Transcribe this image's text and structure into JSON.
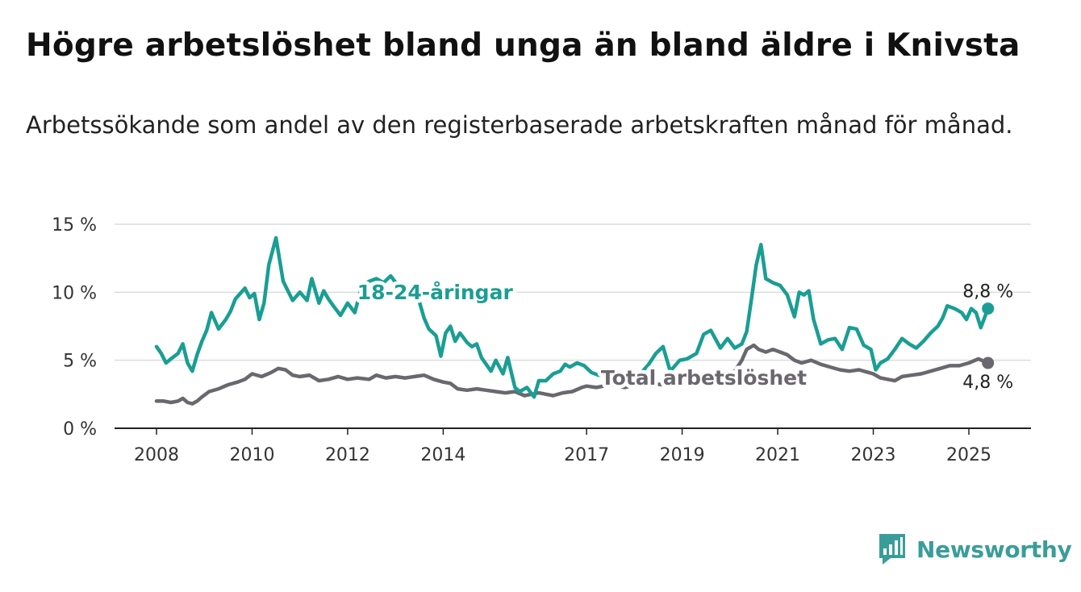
{
  "title": "Högre arbetslöshet bland unga än bland äldre i Knivsta",
  "subtitle": "Arbetssökande som andel av den registerbaserade arbetskraften månad för månad.",
  "brand": {
    "name": "Newsworthy",
    "icon": "newsworthy-logo-icon",
    "color": "#3a9d9a"
  },
  "chart_data": {
    "type": "line",
    "title": "Högre arbetslöshet bland unga än bland äldre i Knivsta",
    "subtitle": "Arbetssökande som andel av den registerbaserade arbetskraften månad för månad.",
    "xlabel": "",
    "ylabel": "",
    "xlim": [
      2008,
      2026.3
    ],
    "ylim": [
      0,
      15
    ],
    "x_ticks": [
      2008,
      2010,
      2012,
      2014,
      2017,
      2019,
      2021,
      2023,
      2025
    ],
    "x_tick_labels": [
      "2008",
      "2010",
      "2012",
      "2014",
      "2017",
      "2019",
      "2021",
      "2023",
      "2025"
    ],
    "y_ticks": [
      0,
      5,
      10,
      15
    ],
    "y_tick_labels": [
      "0 %",
      "5 %",
      "10 %",
      "15 %"
    ],
    "grid": "horizontal",
    "legend": "inline labels",
    "series": [
      {
        "name": "18-24-åringar",
        "color": "#1a9e93",
        "end_label": "8,8 %",
        "x": [
          2008.0,
          2008.1,
          2008.2,
          2008.3,
          2008.45,
          2008.55,
          2008.65,
          2008.75,
          2008.85,
          2008.95,
          2009.05,
          2009.15,
          2009.3,
          2009.45,
          2009.55,
          2009.65,
          2009.75,
          2009.85,
          2009.95,
          2010.05,
          2010.15,
          2010.25,
          2010.35,
          2010.5,
          2010.65,
          2010.75,
          2010.85,
          2011.0,
          2011.15,
          2011.25,
          2011.4,
          2011.5,
          2011.6,
          2011.7,
          2011.85,
          2012.0,
          2012.15,
          2012.3,
          2012.45,
          2012.6,
          2012.75,
          2012.9,
          2013.05,
          2013.2,
          2013.35,
          2013.5,
          2013.6,
          2013.7,
          2013.85,
          2013.95,
          2014.05,
          2014.15,
          2014.25,
          2014.35,
          2014.5,
          2014.6,
          2014.7,
          2014.8,
          2015.0,
          2015.1,
          2015.25,
          2015.35,
          2015.5,
          2015.6,
          2015.75,
          2015.9,
          2016.0,
          2016.15,
          2016.3,
          2016.45,
          2016.55,
          2016.65,
          2016.8,
          2016.95,
          2017.1,
          2017.25,
          2017.5,
          2017.7,
          2017.9,
          2018.1,
          2018.3,
          2018.45,
          2018.6,
          2018.75,
          2018.95,
          2019.1,
          2019.3,
          2019.45,
          2019.6,
          2019.8,
          2019.95,
          2020.1,
          2020.25,
          2020.35,
          2020.45,
          2020.55,
          2020.65,
          2020.75,
          2020.9,
          2021.05,
          2021.2,
          2021.35,
          2021.45,
          2021.55,
          2021.65,
          2021.75,
          2021.9,
          2022.05,
          2022.2,
          2022.35,
          2022.5,
          2022.65,
          2022.8,
          2022.95,
          2023.05,
          2023.15,
          2023.3,
          2023.45,
          2023.6,
          2023.75,
          2023.9,
          2024.05,
          2024.2,
          2024.35,
          2024.45,
          2024.55,
          2024.7,
          2024.85,
          2024.95,
          2025.05,
          2025.15,
          2025.25,
          2025.4
        ],
        "y": [
          6.0,
          5.5,
          4.8,
          5.1,
          5.5,
          6.2,
          4.8,
          4.2,
          5.4,
          6.4,
          7.2,
          8.5,
          7.3,
          8.0,
          8.6,
          9.5,
          9.9,
          10.3,
          9.6,
          9.9,
          8.0,
          9.2,
          12.0,
          14.0,
          10.8,
          10.1,
          9.4,
          10.0,
          9.4,
          11.0,
          9.2,
          10.1,
          9.5,
          9.0,
          8.3,
          9.2,
          8.5,
          10.5,
          10.8,
          11.0,
          10.7,
          11.2,
          10.5,
          10.3,
          10.0,
          9.3,
          8.1,
          7.3,
          6.8,
          5.3,
          7.0,
          7.5,
          6.4,
          7.0,
          6.3,
          6.0,
          6.2,
          5.2,
          4.2,
          5.0,
          4.0,
          5.2,
          3.0,
          2.7,
          3.0,
          2.3,
          3.5,
          3.5,
          4.0,
          4.2,
          4.7,
          4.5,
          4.8,
          4.6,
          4.1,
          3.9,
          4.0,
          3.8,
          4.2,
          3.9,
          4.7,
          5.5,
          6.0,
          4.2,
          5.0,
          5.1,
          5.5,
          6.9,
          7.2,
          5.9,
          6.6,
          5.9,
          6.2,
          7.1,
          9.5,
          12.0,
          13.5,
          11.0,
          10.7,
          10.5,
          9.8,
          8.2,
          10.0,
          9.8,
          10.1,
          8.0,
          6.2,
          6.5,
          6.6,
          5.8,
          7.4,
          7.3,
          6.1,
          5.8,
          4.3,
          4.8,
          5.1,
          5.8,
          6.6,
          6.2,
          5.9,
          6.4,
          7.0,
          7.5,
          8.1,
          9.0,
          8.8,
          8.5,
          8.0,
          8.8,
          8.5,
          7.4,
          8.8
        ]
      },
      {
        "name": "Total arbetslöshet",
        "color": "#6b676e",
        "end_label": "4,8 %",
        "x": [
          2008.0,
          2008.15,
          2008.3,
          2008.45,
          2008.55,
          2008.65,
          2008.75,
          2008.85,
          2008.95,
          2009.1,
          2009.3,
          2009.5,
          2009.7,
          2009.85,
          2010.0,
          2010.2,
          2010.4,
          2010.55,
          2010.7,
          2010.85,
          2011.0,
          2011.2,
          2011.4,
          2011.6,
          2011.8,
          2012.0,
          2012.2,
          2012.45,
          2012.6,
          2012.8,
          2013.0,
          2013.2,
          2013.4,
          2013.6,
          2013.8,
          2014.0,
          2014.15,
          2014.3,
          2014.5,
          2014.7,
          2014.9,
          2015.1,
          2015.3,
          2015.5,
          2015.7,
          2015.85,
          2016.0,
          2016.15,
          2016.3,
          2016.5,
          2016.7,
          2016.9,
          2017.0,
          2017.2,
          2017.5,
          2017.8,
          2018.0,
          2018.3,
          2018.6,
          2018.9,
          2019.2,
          2019.5,
          2019.8,
          2020.1,
          2020.25,
          2020.35,
          2020.5,
          2020.6,
          2020.75,
          2020.9,
          2021.05,
          2021.2,
          2021.35,
          2021.5,
          2021.7,
          2021.9,
          2022.1,
          2022.3,
          2022.5,
          2022.7,
          2022.9,
          2023.0,
          2023.15,
          2023.3,
          2023.45,
          2023.6,
          2023.8,
          2024.0,
          2024.2,
          2024.4,
          2024.6,
          2024.8,
          2025.0,
          2025.2,
          2025.4
        ],
        "y": [
          2.0,
          2.0,
          1.9,
          2.0,
          2.2,
          1.9,
          1.8,
          2.0,
          2.3,
          2.7,
          2.9,
          3.2,
          3.4,
          3.6,
          4.0,
          3.8,
          4.1,
          4.4,
          4.3,
          3.9,
          3.8,
          3.9,
          3.5,
          3.6,
          3.8,
          3.6,
          3.7,
          3.6,
          3.9,
          3.7,
          3.8,
          3.7,
          3.8,
          3.9,
          3.6,
          3.4,
          3.3,
          2.9,
          2.8,
          2.9,
          2.8,
          2.7,
          2.6,
          2.7,
          2.4,
          2.5,
          2.6,
          2.5,
          2.4,
          2.6,
          2.7,
          3.0,
          3.1,
          3.0,
          3.2,
          3.0,
          3.2,
          3.3,
          3.2,
          3.3,
          3.4,
          3.5,
          3.6,
          4.2,
          5.0,
          5.8,
          6.1,
          5.8,
          5.6,
          5.8,
          5.6,
          5.4,
          5.0,
          4.8,
          5.0,
          4.7,
          4.5,
          4.3,
          4.2,
          4.3,
          4.1,
          4.0,
          3.7,
          3.6,
          3.5,
          3.8,
          3.9,
          4.0,
          4.2,
          4.4,
          4.6,
          4.6,
          4.8,
          5.1,
          4.8
        ]
      }
    ]
  }
}
